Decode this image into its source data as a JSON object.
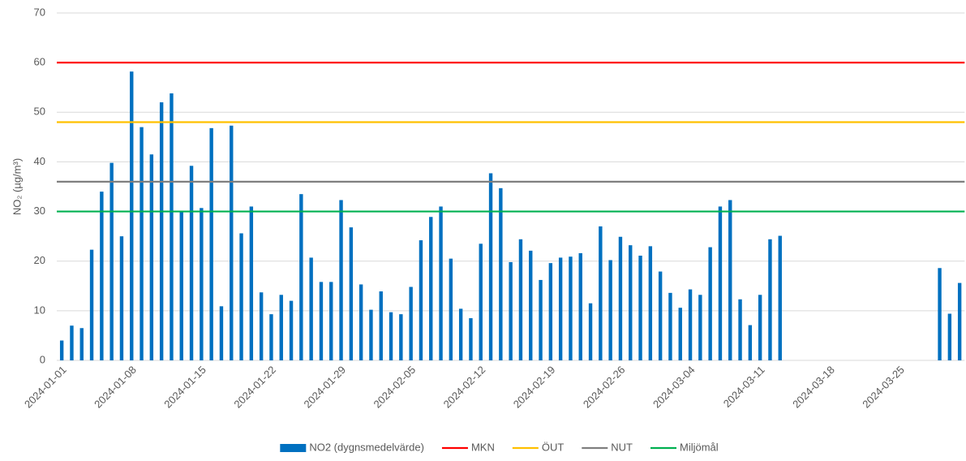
{
  "chart_data": {
    "type": "bar",
    "y_label": "NO₂ (µg/m³)",
    "categories": [
      "2024-01-01",
      null,
      null,
      null,
      null,
      null,
      null,
      "2024-01-08",
      null,
      null,
      null,
      null,
      null,
      null,
      "2024-01-15",
      null,
      null,
      null,
      null,
      null,
      null,
      "2024-01-22",
      null,
      null,
      null,
      null,
      null,
      null,
      "2024-01-29",
      null,
      null,
      null,
      null,
      null,
      null,
      "2024-02-05",
      null,
      null,
      null,
      null,
      null,
      null,
      "2024-02-12",
      null,
      null,
      null,
      null,
      null,
      null,
      "2024-02-19",
      null,
      null,
      null,
      null,
      null,
      null,
      "2024-02-26",
      null,
      null,
      null,
      null,
      null,
      null,
      "2024-03-04",
      null,
      null,
      null,
      null,
      null,
      null,
      "2024-03-11",
      null,
      null,
      null,
      null,
      null,
      null,
      "2024-03-18",
      null,
      null,
      null,
      null,
      null,
      null,
      "2024-03-25",
      null,
      null,
      null,
      null,
      null,
      null
    ],
    "series": [
      {
        "name": "NO2 (dygnsmedelvärde)",
        "color": "#0070c0",
        "values": [
          4,
          7,
          6.5,
          22.3,
          34,
          39.8,
          25,
          58.2,
          47,
          41.5,
          52,
          53.8,
          30,
          39.2,
          30.7,
          46.8,
          10.9,
          47.3,
          25.6,
          31,
          13.7,
          9.3,
          13.2,
          12,
          33.5,
          20.7,
          15.8,
          15.8,
          32.3,
          26.8,
          15.3,
          10.2,
          13.9,
          9.7,
          9.3,
          14.8,
          24.2,
          28.9,
          31,
          20.5,
          10.4,
          8.5,
          23.5,
          37.7,
          34.7,
          19.8,
          24.4,
          22.1,
          16.2,
          19.6,
          20.7,
          20.9,
          21.6,
          11.5,
          27,
          20.2,
          24.9,
          23.2,
          21.1,
          23,
          17.9,
          13.6,
          10.6,
          14.3,
          13.2,
          22.8,
          31,
          32.3,
          12.3,
          7.1,
          13.2,
          24.4,
          25.1,
          null,
          null,
          null,
          null,
          null,
          null,
          null,
          null,
          null,
          null,
          null,
          null,
          null,
          null,
          null,
          18.6,
          9.4,
          15.6
        ]
      }
    ],
    "lines": [
      {
        "name": "MKN",
        "color": "#ff0000",
        "value": 60
      },
      {
        "name": "ÖUT",
        "color": "#ffc000",
        "value": 48
      },
      {
        "name": "NUT",
        "color": "#7f7f7f",
        "value": 36
      },
      {
        "name": "Miljömål",
        "color": "#00b050",
        "value": 30
      }
    ],
    "ylim": [
      0,
      70
    ],
    "yticks": [
      0,
      10,
      20,
      30,
      40,
      50,
      60,
      70
    ],
    "grid": true
  }
}
